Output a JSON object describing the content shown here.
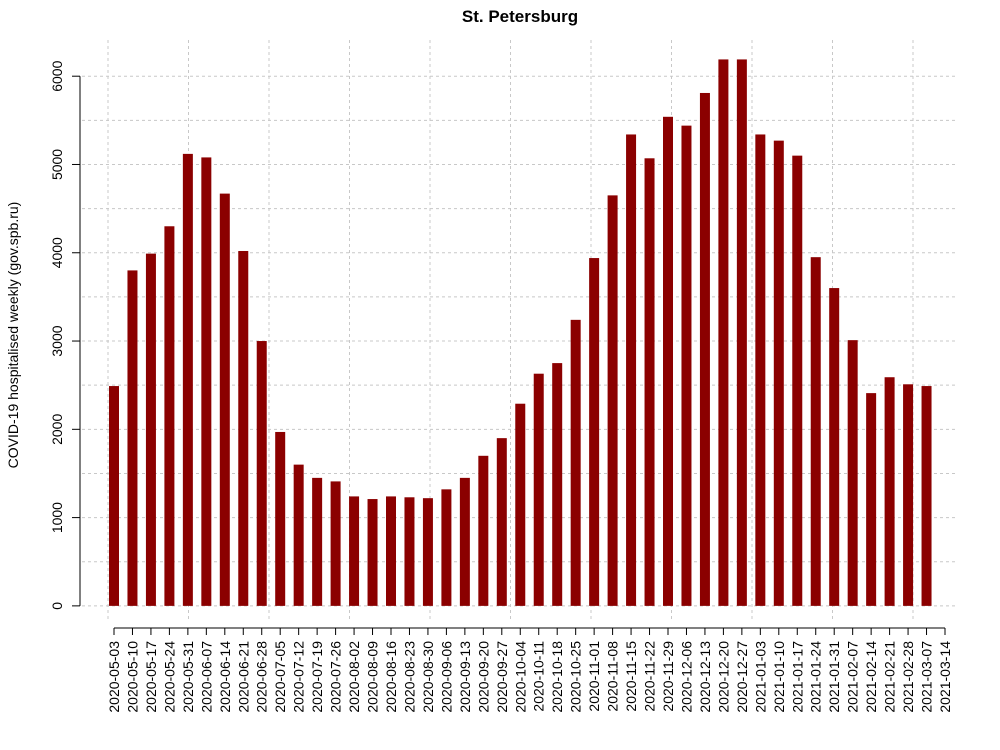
{
  "chart_data": {
    "type": "bar",
    "title": "St. Petersburg",
    "y_label": "COVID-19 hospitalised weekly (gov.spb.ru)",
    "categories": [
      "2020-05-03",
      "2020-05-10",
      "2020-05-17",
      "2020-05-24",
      "2020-05-31",
      "2020-06-07",
      "2020-06-14",
      "2020-06-21",
      "2020-06-28",
      "2020-07-05",
      "2020-07-12",
      "2020-07-19",
      "2020-07-26",
      "2020-08-02",
      "2020-08-09",
      "2020-08-16",
      "2020-08-23",
      "2020-08-30",
      "2020-09-06",
      "2020-09-13",
      "2020-09-20",
      "2020-09-27",
      "2020-10-04",
      "2020-10-11",
      "2020-10-18",
      "2020-10-25",
      "2020-11-01",
      "2020-11-08",
      "2020-11-15",
      "2020-11-22",
      "2020-11-29",
      "2020-12-06",
      "2020-12-13",
      "2020-12-20",
      "2020-12-27",
      "2021-01-03",
      "2021-01-10",
      "2021-01-17",
      "2021-01-24",
      "2021-01-31",
      "2021-02-07",
      "2021-02-14",
      "2021-02-21",
      "2021-02-28",
      "2021-03-07",
      "2021-03-14"
    ],
    "values": [
      2490,
      3800,
      3990,
      4300,
      5120,
      5080,
      4670,
      4020,
      3000,
      1970,
      1600,
      1450,
      1410,
      1240,
      1210,
      1240,
      1230,
      1220,
      1320,
      1450,
      1700,
      1900,
      2290,
      2630,
      2750,
      3240,
      3940,
      4650,
      5340,
      5070,
      5540,
      5440,
      5810,
      6190,
      6190,
      5340,
      5270,
      5100,
      3950,
      3600,
      3010,
      2410,
      2590,
      2510,
      2490,
      null
    ],
    "color": "#8b0000",
    "ylim": [
      -160,
      6410
    ],
    "yticks": [
      0,
      1000,
      2000,
      3000,
      4000,
      5000,
      6000
    ],
    "grid": true
  }
}
